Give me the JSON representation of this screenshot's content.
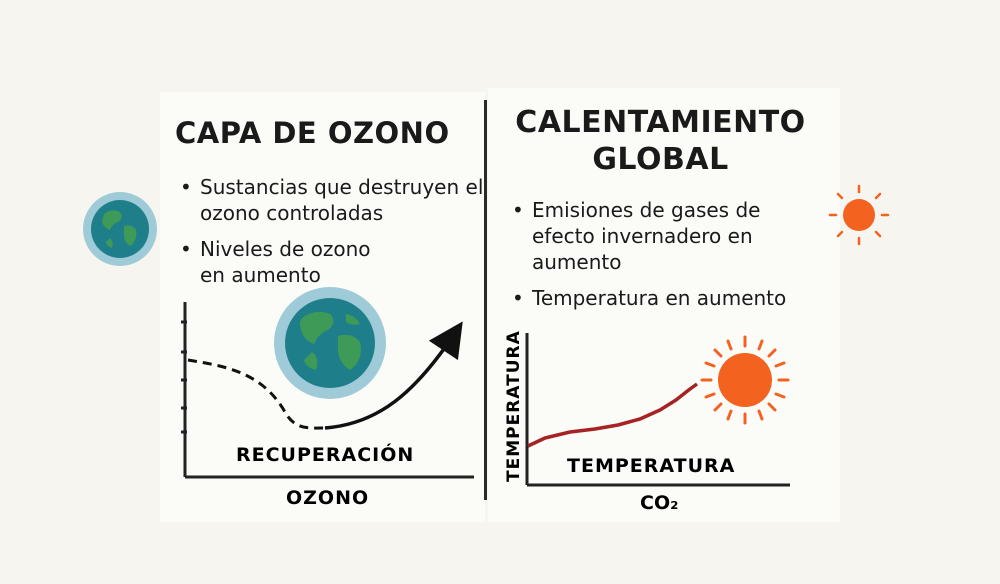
{
  "left": {
    "title": "CAPA DE OZONO",
    "bullets": [
      "Sustancias que destruyen el ozono controladas",
      "Niveles de ozono en aumento"
    ],
    "chart": {
      "curve_label": "RECUPERACIÓN",
      "x_label": "OZONO"
    }
  },
  "right": {
    "title": "CALENTAMIENTO GLOBAL",
    "bullets": [
      "Emisiones de gases de efecto invernadero en aumento",
      "Temperatura en aumento"
    ],
    "chart": {
      "y_label": "TEMPERATURA",
      "inner_label": "TEMPERATURA",
      "x_label": "CO₂"
    }
  },
  "icons": [
    "earth-icon",
    "sun-icon"
  ],
  "colors": {
    "earth_ocean": "#1e7f8a",
    "earth_land": "#3e9a57",
    "earth_halo": "#9fcbd9",
    "sun": "#f4621f",
    "co2_line": "#a62323"
  }
}
